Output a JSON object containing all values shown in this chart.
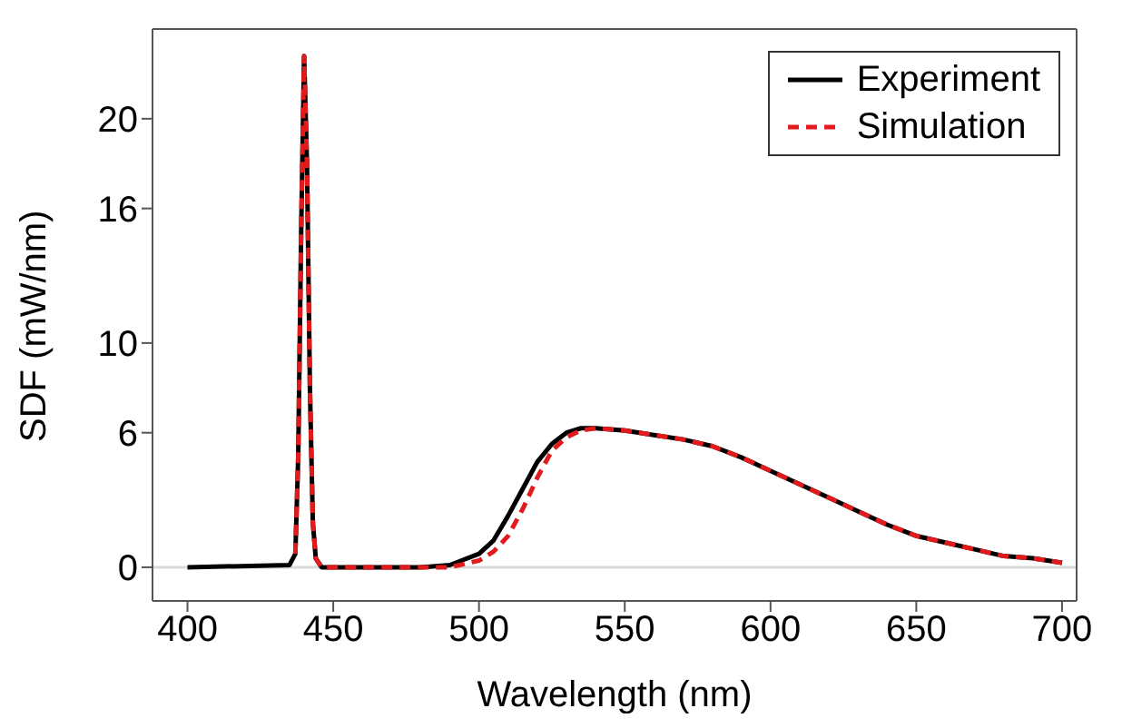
{
  "chart_data": {
    "type": "line",
    "xlabel": "Wavelength (nm)",
    "ylabel": "SDF (mW/nm)",
    "xlim": [
      388,
      705
    ],
    "xticks": [
      400,
      450,
      500,
      550,
      600,
      650,
      700
    ],
    "ylim": [
      -1.5,
      24
    ],
    "yticks": [
      0,
      6,
      10,
      16,
      20
    ],
    "legend": "top right",
    "ref_lines": [
      {
        "axis": "y",
        "value": 0,
        "color": "#d9d9d9"
      }
    ],
    "series": [
      {
        "name": "Experiment",
        "color": "#000000",
        "line_style": "solid",
        "x": [
          400,
          435,
          437,
          438,
          439,
          440,
          441,
          442,
          443,
          444,
          446,
          480,
          490,
          500,
          505,
          510,
          515,
          520,
          525,
          530,
          535,
          540,
          550,
          560,
          570,
          580,
          590,
          600,
          610,
          620,
          630,
          640,
          650,
          660,
          670,
          680,
          690,
          700
        ],
        "values": [
          0,
          0.1,
          0.6,
          5,
          15,
          22.8,
          18,
          8,
          2,
          0.4,
          0,
          0,
          0.1,
          0.6,
          1.2,
          2.3,
          3.5,
          4.7,
          5.5,
          6,
          6.2,
          6.2,
          6.1,
          5.9,
          5.7,
          5.4,
          4.9,
          4.3,
          3.7,
          3.1,
          2.5,
          1.9,
          1.4,
          1.1,
          0.8,
          0.5,
          0.4,
          0.2
        ]
      },
      {
        "name": "Simulation",
        "color": "#e31a1c",
        "line_style": "dashed",
        "x": [
          437,
          438,
          439,
          440,
          441,
          442,
          443,
          444,
          446,
          480,
          490,
          500,
          505,
          510,
          515,
          520,
          525,
          530,
          535,
          540,
          550,
          560,
          570,
          580,
          590,
          600,
          610,
          620,
          630,
          640,
          650,
          660,
          670,
          680,
          690,
          700
        ],
        "values": [
          0.6,
          5,
          15,
          22.8,
          18,
          8,
          2,
          0.4,
          0,
          0,
          0,
          0.3,
          0.7,
          1.4,
          2.6,
          4,
          5.2,
          5.8,
          6.1,
          6.2,
          6.1,
          5.9,
          5.7,
          5.4,
          4.9,
          4.3,
          3.7,
          3.1,
          2.5,
          1.9,
          1.4,
          1.1,
          0.8,
          0.5,
          0.4,
          0.2
        ]
      }
    ]
  }
}
